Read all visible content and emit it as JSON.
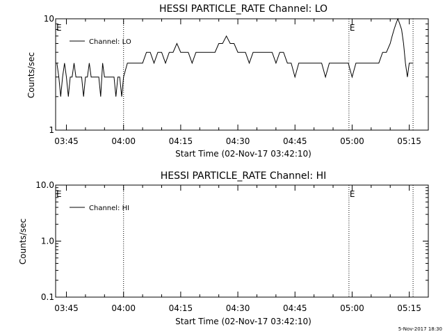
{
  "chart_data": [
    {
      "type": "line",
      "title": "HESSI PARTICLE_RATE Channel: LO",
      "xlabel": "Start Time (02-Nov-17 03:42:10)",
      "ylabel": "Counts/sec",
      "yscale": "log",
      "ylim": [
        1,
        10
      ],
      "yticks": [
        "1",
        "10"
      ],
      "xlim": [
        "03:42:10",
        "05:20:00"
      ],
      "xticks": [
        "03:45",
        "04:00",
        "04:15",
        "04:30",
        "04:45",
        "05:00",
        "05:15"
      ],
      "legend": {
        "placement": "top-left"
      },
      "series": [
        {
          "name": "Channel: LO",
          "x": [
            "03:42:30",
            "03:43:00",
            "03:43:30",
            "03:44:00",
            "03:44:30",
            "03:45:00",
            "03:45:30",
            "03:46:00",
            "03:46:30",
            "03:47:00",
            "03:47:30",
            "03:48:00",
            "03:48:30",
            "03:49:00",
            "03:49:30",
            "03:50:00",
            "03:50:30",
            "03:51:00",
            "03:51:30",
            "03:52:00",
            "03:52:30",
            "03:53:00",
            "03:53:30",
            "03:54:00",
            "03:54:30",
            "03:55:00",
            "03:55:30",
            "03:56:00",
            "03:56:30",
            "03:57:00",
            "03:57:30",
            "03:58:00",
            "03:58:30",
            "03:59:00",
            "03:59:30",
            "04:00:00",
            "04:01:00",
            "04:02:00",
            "04:03:00",
            "04:04:00",
            "04:05:00",
            "04:06:00",
            "04:07:00",
            "04:08:00",
            "04:09:00",
            "04:10:00",
            "04:11:00",
            "04:12:00",
            "04:13:00",
            "04:14:00",
            "04:15:00",
            "04:16:00",
            "04:17:00",
            "04:18:00",
            "04:19:00",
            "04:20:00",
            "04:21:00",
            "04:22:00",
            "04:23:00",
            "04:24:00",
            "04:25:00",
            "04:26:00",
            "04:27:00",
            "04:28:00",
            "04:29:00",
            "04:30:00",
            "04:31:00",
            "04:32:00",
            "04:33:00",
            "04:34:00",
            "04:35:00",
            "04:36:00",
            "04:37:00",
            "04:38:00",
            "04:39:00",
            "04:40:00",
            "04:41:00",
            "04:42:00",
            "04:43:00",
            "04:44:00",
            "04:45:00",
            "04:46:00",
            "04:47:00",
            "04:48:00",
            "04:49:00",
            "04:50:00",
            "04:51:00",
            "04:52:00",
            "04:53:00",
            "04:54:00",
            "04:55:00",
            "04:56:00",
            "04:57:00",
            "04:58:00",
            "04:59:00",
            "05:00:00",
            "05:01:00",
            "05:02:00",
            "05:03:00",
            "05:04:00",
            "05:05:00",
            "05:06:00",
            "05:07:00",
            "05:08:00",
            "05:09:00",
            "05:10:00",
            "05:10:30",
            "05:11:00",
            "05:11:30",
            "05:12:00",
            "05:12:30",
            "05:13:00",
            "05:13:30",
            "05:14:00",
            "05:14:30",
            "05:15:00",
            "05:15:30",
            "05:16:00"
          ],
          "y": [
            4,
            3,
            2,
            3,
            4,
            3,
            2,
            3,
            3,
            4,
            3,
            3,
            3,
            3,
            2,
            3,
            3,
            4,
            3,
            3,
            3,
            3,
            3,
            2,
            4,
            3,
            3,
            3,
            3,
            3,
            3,
            2,
            3,
            3,
            2,
            3,
            4,
            4,
            4,
            4,
            4,
            5,
            5,
            4,
            5,
            5,
            4,
            5,
            5,
            6,
            5,
            5,
            5,
            4,
            5,
            5,
            5,
            5,
            5,
            5,
            6,
            6,
            7,
            6,
            6,
            5,
            5,
            5,
            4,
            5,
            5,
            5,
            5,
            5,
            5,
            4,
            5,
            5,
            4,
            4,
            3,
            4,
            4,
            4,
            4,
            4,
            4,
            4,
            3,
            4,
            4,
            4,
            4,
            4,
            4,
            3,
            4,
            4,
            4,
            4,
            4,
            4,
            4,
            5,
            5,
            6,
            7,
            8,
            9,
            10,
            9,
            8,
            6,
            4,
            3,
            4,
            4,
            4
          ]
        }
      ],
      "annotations": [
        {
          "text": "E",
          "x": "03:42:10"
        },
        {
          "text": "E",
          "x": "04:59:10"
        }
      ],
      "vertical_markers": [
        "04:00:00",
        "04:59:10",
        "05:16:00"
      ]
    },
    {
      "type": "line",
      "title": "HESSI PARTICLE_RATE Channel: HI",
      "xlabel": "Start Time (02-Nov-17 03:42:10)",
      "ylabel": "Counts/sec",
      "yscale": "log",
      "ylim": [
        0.1,
        10
      ],
      "yticks": [
        "0.1",
        "1.0",
        "10.0"
      ],
      "xlim": [
        "03:42:10",
        "05:20:00"
      ],
      "xticks": [
        "03:45",
        "04:00",
        "04:15",
        "04:30",
        "04:45",
        "05:00",
        "05:15"
      ],
      "legend": {
        "placement": "top-left"
      },
      "series": [
        {
          "name": "Channel: HI",
          "x": [],
          "y": []
        }
      ],
      "annotations": [
        {
          "text": "E",
          "x": "03:42:10"
        },
        {
          "text": "E",
          "x": "04:59:10"
        }
      ],
      "vertical_markers": [
        "04:00:00",
        "04:59:10",
        "05:16:00"
      ]
    }
  ],
  "footer": {
    "timestamp": "5-Nov-2017 18:30"
  }
}
